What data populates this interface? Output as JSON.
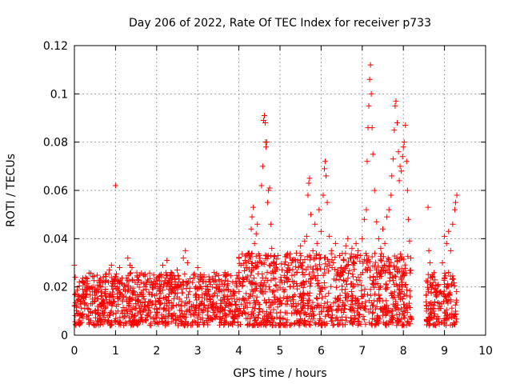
{
  "chart_data": {
    "type": "scatter",
    "title": "Day 206 of 2022, Rate Of TEC Index for receiver p733",
    "xlabel": "GPS time / hours",
    "ylabel": "ROTI / TECUs",
    "xlim": [
      0,
      10
    ],
    "ylim": [
      0,
      0.12
    ],
    "xticks": [
      0,
      1,
      2,
      3,
      4,
      5,
      6,
      7,
      8,
      9,
      10
    ],
    "yticks": [
      0,
      0.02,
      0.04,
      0.06,
      0.08,
      0.1,
      0.12
    ],
    "ytick_labels": [
      "0",
      "0.02",
      "0.04",
      "0.06",
      "0.08",
      "0.1",
      "0.12"
    ],
    "grid": true,
    "marker": "+",
    "color": "#ff0000",
    "series": [
      {
        "name": "ROTI",
        "points": [
          [
            0.0,
            0.029
          ],
          [
            0.02,
            0.024
          ],
          [
            0.05,
            0.012
          ],
          [
            0.08,
            0.009
          ],
          [
            0.1,
            0.016
          ],
          [
            0.12,
            0.022
          ],
          [
            0.15,
            0.014
          ],
          [
            0.18,
            0.008
          ],
          [
            0.2,
            0.019
          ],
          [
            0.25,
            0.011
          ],
          [
            0.3,
            0.017
          ],
          [
            0.35,
            0.007
          ],
          [
            0.4,
            0.013
          ],
          [
            0.45,
            0.02
          ],
          [
            0.5,
            0.01
          ],
          [
            0.55,
            0.015
          ],
          [
            0.6,
            0.022
          ],
          [
            0.65,
            0.012
          ],
          [
            0.7,
            0.009
          ],
          [
            0.75,
            0.018
          ],
          [
            0.8,
            0.013
          ],
          [
            0.85,
            0.027
          ],
          [
            0.9,
            0.029
          ],
          [
            0.95,
            0.016
          ],
          [
            1.0,
            0.062
          ],
          [
            1.02,
            0.012
          ],
          [
            1.05,
            0.02
          ],
          [
            1.1,
            0.028
          ],
          [
            1.15,
            0.01
          ],
          [
            1.2,
            0.016
          ],
          [
            1.25,
            0.008
          ],
          [
            1.3,
            0.032
          ],
          [
            1.35,
            0.029
          ],
          [
            1.4,
            0.028
          ],
          [
            1.45,
            0.018
          ],
          [
            1.5,
            0.011
          ],
          [
            1.55,
            0.023
          ],
          [
            1.6,
            0.01
          ],
          [
            1.65,
            0.016
          ],
          [
            1.7,
            0.012
          ],
          [
            1.75,
            0.019
          ],
          [
            1.8,
            0.009
          ],
          [
            1.85,
            0.014
          ],
          [
            1.9,
            0.021
          ],
          [
            1.95,
            0.011
          ],
          [
            2.0,
            0.017
          ],
          [
            2.05,
            0.024
          ],
          [
            2.1,
            0.013
          ],
          [
            2.15,
            0.029
          ],
          [
            2.2,
            0.022
          ],
          [
            2.25,
            0.031
          ],
          [
            2.3,
            0.019
          ],
          [
            2.35,
            0.026
          ],
          [
            2.4,
            0.012
          ],
          [
            2.45,
            0.02
          ],
          [
            2.5,
            0.027
          ],
          [
            2.55,
            0.015
          ],
          [
            2.6,
            0.021
          ],
          [
            2.65,
            0.032
          ],
          [
            2.7,
            0.035
          ],
          [
            2.75,
            0.03
          ],
          [
            2.8,
            0.018
          ],
          [
            2.85,
            0.012
          ],
          [
            2.9,
            0.025
          ],
          [
            2.95,
            0.017
          ],
          [
            3.0,
            0.028
          ],
          [
            3.05,
            0.02
          ],
          [
            3.1,
            0.014
          ],
          [
            3.15,
            0.024
          ],
          [
            3.2,
            0.018
          ],
          [
            3.25,
            0.011
          ],
          [
            3.3,
            0.022
          ],
          [
            3.35,
            0.016
          ],
          [
            3.4,
            0.026
          ],
          [
            3.45,
            0.013
          ],
          [
            3.5,
            0.019
          ],
          [
            3.55,
            0.01
          ],
          [
            3.6,
            0.021
          ],
          [
            3.65,
            0.015
          ],
          [
            3.7,
            0.025
          ],
          [
            3.75,
            0.012
          ],
          [
            3.8,
            0.018
          ],
          [
            3.85,
            0.022
          ],
          [
            3.9,
            0.014
          ],
          [
            3.95,
            0.02
          ],
          [
            4.0,
            0.026
          ],
          [
            4.05,
            0.029
          ],
          [
            4.1,
            0.022
          ],
          [
            4.15,
            0.031
          ],
          [
            4.2,
            0.028
          ],
          [
            4.25,
            0.034
          ],
          [
            4.3,
            0.044
          ],
          [
            4.32,
            0.049
          ],
          [
            4.35,
            0.053
          ],
          [
            4.38,
            0.038
          ],
          [
            4.4,
            0.03
          ],
          [
            4.42,
            0.042
          ],
          [
            4.45,
            0.046
          ],
          [
            4.5,
            0.033
          ],
          [
            4.55,
            0.062
          ],
          [
            4.58,
            0.07
          ],
          [
            4.6,
            0.089
          ],
          [
            4.62,
            0.091
          ],
          [
            4.64,
            0.088
          ],
          [
            4.65,
            0.08
          ],
          [
            4.66,
            0.078
          ],
          [
            4.68,
            0.08
          ],
          [
            4.7,
            0.055
          ],
          [
            4.72,
            0.06
          ],
          [
            4.75,
            0.061
          ],
          [
            4.78,
            0.046
          ],
          [
            4.8,
            0.036
          ],
          [
            4.85,
            0.03
          ],
          [
            4.9,
            0.028
          ],
          [
            4.95,
            0.033
          ],
          [
            5.0,
            0.022
          ],
          [
            5.05,
            0.027
          ],
          [
            5.1,
            0.018
          ],
          [
            5.15,
            0.024
          ],
          [
            5.2,
            0.029
          ],
          [
            5.25,
            0.02
          ],
          [
            5.3,
            0.031
          ],
          [
            5.35,
            0.025
          ],
          [
            5.4,
            0.034
          ],
          [
            5.45,
            0.028
          ],
          [
            5.5,
            0.037
          ],
          [
            5.55,
            0.03
          ],
          [
            5.6,
            0.039
          ],
          [
            5.65,
            0.041
          ],
          [
            5.68,
            0.058
          ],
          [
            5.7,
            0.063
          ],
          [
            5.72,
            0.065
          ],
          [
            5.75,
            0.05
          ],
          [
            5.8,
            0.035
          ],
          [
            5.85,
            0.046
          ],
          [
            5.9,
            0.038
          ],
          [
            5.95,
            0.052
          ],
          [
            6.0,
            0.043
          ],
          [
            6.05,
            0.058
          ],
          [
            6.08,
            0.069
          ],
          [
            6.1,
            0.072
          ],
          [
            6.12,
            0.066
          ],
          [
            6.15,
            0.055
          ],
          [
            6.2,
            0.041
          ],
          [
            6.25,
            0.035
          ],
          [
            6.3,
            0.03
          ],
          [
            6.35,
            0.038
          ],
          [
            6.4,
            0.027
          ],
          [
            6.45,
            0.033
          ],
          [
            6.5,
            0.025
          ],
          [
            6.55,
            0.031
          ],
          [
            6.6,
            0.037
          ],
          [
            6.65,
            0.04
          ],
          [
            6.7,
            0.032
          ],
          [
            6.75,
            0.036
          ],
          [
            6.8,
            0.03
          ],
          [
            6.85,
            0.038
          ],
          [
            6.9,
            0.035
          ],
          [
            6.95,
            0.033
          ],
          [
            7.0,
            0.04
          ],
          [
            7.05,
            0.048
          ],
          [
            7.1,
            0.052
          ],
          [
            7.12,
            0.072
          ],
          [
            7.14,
            0.086
          ],
          [
            7.16,
            0.095
          ],
          [
            7.18,
            0.106
          ],
          [
            7.2,
            0.112
          ],
          [
            7.22,
            0.1
          ],
          [
            7.24,
            0.086
          ],
          [
            7.26,
            0.075
          ],
          [
            7.3,
            0.06
          ],
          [
            7.35,
            0.047
          ],
          [
            7.4,
            0.04
          ],
          [
            7.45,
            0.036
          ],
          [
            7.5,
            0.044
          ],
          [
            7.55,
            0.038
          ],
          [
            7.6,
            0.049
          ],
          [
            7.65,
            0.052
          ],
          [
            7.7,
            0.058
          ],
          [
            7.72,
            0.066
          ],
          [
            7.75,
            0.073
          ],
          [
            7.78,
            0.085
          ],
          [
            7.8,
            0.095
          ],
          [
            7.82,
            0.097
          ],
          [
            7.85,
            0.088
          ],
          [
            7.88,
            0.076
          ],
          [
            7.9,
            0.064
          ],
          [
            7.92,
            0.07
          ],
          [
            7.95,
            0.068
          ],
          [
            7.98,
            0.074
          ],
          [
            8.0,
            0.078
          ],
          [
            8.02,
            0.08
          ],
          [
            8.05,
            0.087
          ],
          [
            8.08,
            0.072
          ],
          [
            8.1,
            0.06
          ],
          [
            8.12,
            0.048
          ],
          [
            8.15,
            0.039
          ],
          [
            8.18,
            0.032
          ],
          [
            8.6,
            0.053
          ],
          [
            8.62,
            0.035
          ],
          [
            8.65,
            0.03
          ],
          [
            8.7,
            0.024
          ],
          [
            8.75,
            0.019
          ],
          [
            8.8,
            0.016
          ],
          [
            8.85,
            0.021
          ],
          [
            8.9,
            0.018
          ],
          [
            8.95,
            0.03
          ],
          [
            9.0,
            0.041
          ],
          [
            9.05,
            0.038
          ],
          [
            9.1,
            0.043
          ],
          [
            9.15,
            0.035
          ],
          [
            9.2,
            0.046
          ],
          [
            9.25,
            0.052
          ],
          [
            9.27,
            0.055
          ],
          [
            9.3,
            0.058
          ]
        ]
      }
    ]
  }
}
